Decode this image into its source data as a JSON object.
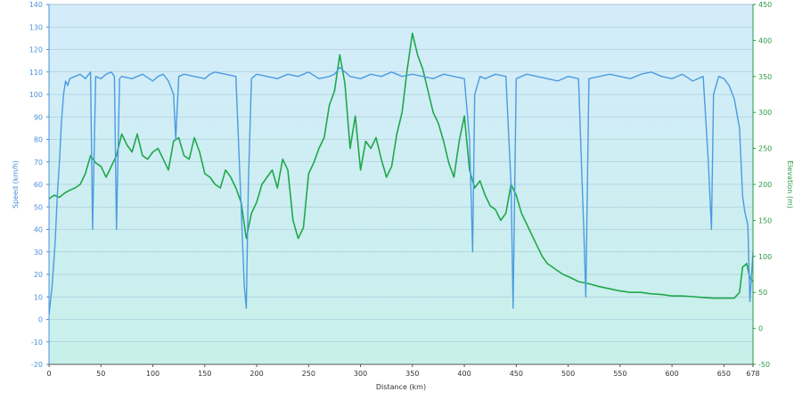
{
  "chart_data": {
    "type": "line",
    "xlabel": "Distance  (km)",
    "ylabel_left": "Speed (km/h)",
    "ylabel_right": "Elevation (m)",
    "xlim": [
      0,
      678
    ],
    "ylim_left": [
      -20,
      140
    ],
    "ylim_right": [
      -50,
      450
    ],
    "x_ticks": [
      "0",
      "50",
      "100",
      "150",
      "200",
      "250",
      "300",
      "350",
      "400",
      "450",
      "500",
      "550",
      "600",
      "650",
      "678"
    ],
    "x_tick_values": [
      0,
      50,
      100,
      150,
      200,
      250,
      300,
      350,
      400,
      450,
      500,
      550,
      600,
      650,
      678
    ],
    "left_ticks": [
      "-20",
      "-10",
      "0",
      "10",
      "20",
      "30",
      "40",
      "50",
      "60",
      "70",
      "80",
      "90",
      "100",
      "110",
      "120",
      "130",
      "140"
    ],
    "left_tick_values": [
      -20,
      -10,
      0,
      10,
      20,
      30,
      40,
      50,
      60,
      70,
      80,
      90,
      100,
      110,
      120,
      130,
      140
    ],
    "right_ticks": [
      "-50",
      "0",
      "50",
      "100",
      "150",
      "200",
      "250",
      "300",
      "350",
      "400",
      "450"
    ],
    "right_tick_values": [
      -50,
      0,
      50,
      100,
      150,
      200,
      250,
      300,
      350,
      400,
      450
    ],
    "grid": true,
    "colors": {
      "speed": "#4c9be0",
      "elevation": "#1ea84a",
      "speed_axis": "#4a90d9",
      "elevation_axis": "#2a9a45",
      "grid": "#9fbfd4",
      "plot_bg_top": "#d4ecfb",
      "plot_bg_bottom": "#c8f0ea"
    },
    "series": [
      {
        "axis": "left",
        "x": [
          0,
          3,
          6,
          8,
          10,
          12,
          14,
          16,
          18,
          20,
          25,
          30,
          35,
          40,
          42,
          45,
          50,
          55,
          60,
          63,
          65,
          68,
          70,
          80,
          90,
          100,
          105,
          110,
          115,
          120,
          122,
          125,
          130,
          140,
          150,
          155,
          160,
          170,
          180,
          185,
          188,
          190,
          192,
          195,
          200,
          210,
          220,
          230,
          240,
          250,
          260,
          270,
          275,
          280,
          290,
          300,
          310,
          320,
          330,
          340,
          350,
          360,
          370,
          380,
          390,
          400,
          405,
          408,
          410,
          415,
          420,
          430,
          440,
          445,
          447,
          450,
          460,
          470,
          480,
          490,
          500,
          510,
          515,
          517,
          520,
          530,
          540,
          550,
          560,
          570,
          580,
          590,
          600,
          610,
          620,
          630,
          635,
          638,
          640,
          645,
          650,
          655,
          660,
          665,
          668,
          670,
          673,
          675,
          678
        ],
        "y": [
          2,
          15,
          35,
          55,
          70,
          88,
          100,
          106,
          104,
          107,
          108,
          109,
          107,
          110,
          40,
          108,
          107,
          109,
          110,
          108,
          40,
          107,
          108,
          107,
          109,
          106,
          108,
          109,
          106,
          100,
          80,
          108,
          109,
          108,
          107,
          109,
          110,
          109,
          108,
          50,
          15,
          5,
          60,
          107,
          109,
          108,
          107,
          109,
          108,
          110,
          107,
          108,
          109,
          112,
          108,
          107,
          109,
          108,
          110,
          108,
          109,
          108,
          107,
          109,
          108,
          107,
          80,
          30,
          100,
          108,
          107,
          109,
          108,
          60,
          5,
          107,
          109,
          108,
          107,
          106,
          108,
          107,
          40,
          10,
          107,
          108,
          109,
          108,
          107,
          109,
          110,
          108,
          107,
          109,
          106,
          108,
          70,
          40,
          100,
          108,
          107,
          104,
          98,
          85,
          55,
          48,
          42,
          8,
          30
        ]
      },
      {
        "axis": "right",
        "x": [
          0,
          5,
          10,
          15,
          20,
          25,
          30,
          35,
          40,
          45,
          50,
          55,
          60,
          65,
          70,
          75,
          80,
          85,
          90,
          95,
          100,
          105,
          110,
          115,
          120,
          125,
          130,
          135,
          140,
          145,
          150,
          155,
          160,
          165,
          170,
          175,
          180,
          185,
          190,
          195,
          200,
          205,
          210,
          215,
          220,
          225,
          230,
          235,
          240,
          245,
          250,
          255,
          260,
          265,
          270,
          275,
          280,
          285,
          290,
          295,
          300,
          305,
          310,
          315,
          320,
          325,
          330,
          335,
          340,
          345,
          350,
          355,
          360,
          365,
          370,
          375,
          380,
          385,
          390,
          395,
          400,
          405,
          410,
          415,
          420,
          425,
          430,
          435,
          440,
          445,
          450,
          455,
          460,
          465,
          470,
          475,
          480,
          485,
          490,
          495,
          500,
          510,
          520,
          530,
          540,
          550,
          560,
          570,
          580,
          590,
          600,
          610,
          620,
          630,
          640,
          650,
          660,
          665,
          668,
          672,
          675,
          678
        ],
        "y": [
          180,
          185,
          182,
          188,
          192,
          195,
          200,
          215,
          240,
          230,
          225,
          210,
          225,
          240,
          270,
          255,
          245,
          270,
          240,
          235,
          245,
          250,
          235,
          220,
          260,
          265,
          240,
          235,
          265,
          245,
          215,
          210,
          200,
          195,
          220,
          210,
          195,
          175,
          125,
          160,
          175,
          200,
          210,
          220,
          195,
          235,
          220,
          150,
          125,
          140,
          215,
          230,
          250,
          265,
          310,
          330,
          380,
          340,
          250,
          295,
          220,
          260,
          250,
          265,
          235,
          210,
          225,
          270,
          300,
          360,
          410,
          380,
          360,
          330,
          300,
          285,
          260,
          230,
          210,
          260,
          295,
          220,
          195,
          205,
          185,
          170,
          165,
          150,
          160,
          200,
          185,
          160,
          145,
          130,
          115,
          100,
          90,
          85,
          80,
          75,
          72,
          65,
          62,
          58,
          55,
          52,
          50,
          50,
          48,
          47,
          45,
          45,
          44,
          43,
          42,
          42,
          42,
          50,
          85,
          90,
          70,
          65
        ]
      }
    ]
  }
}
